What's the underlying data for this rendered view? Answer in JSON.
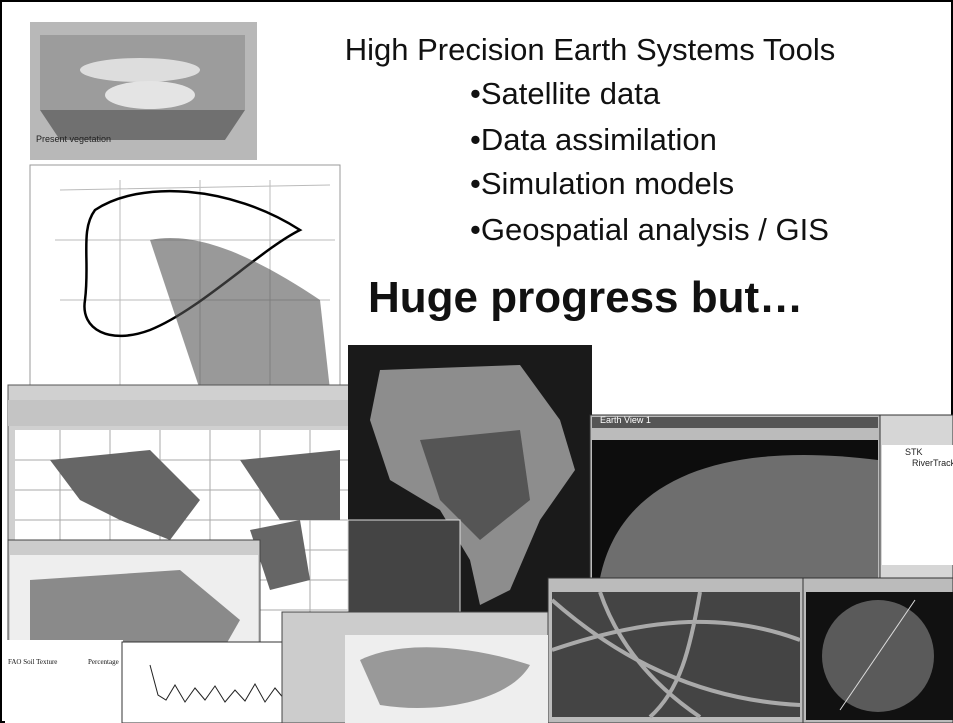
{
  "slide": {
    "title": "High Precision Earth Systems Tools",
    "bullets": [
      "•Satellite data",
      "•Data assimilation",
      "•Simulation models",
      "•Geospatial analysis / GIS"
    ],
    "headline": "Huge progress but…",
    "images": {
      "vegetation_caption": "Present vegetation",
      "earth_view_title": "Earth View 1",
      "tree_items": [
        "STK",
        "RiverTrack"
      ],
      "soil_table_title": "FAO Soil Texture",
      "soil_table_header": "Percentage"
    }
  }
}
